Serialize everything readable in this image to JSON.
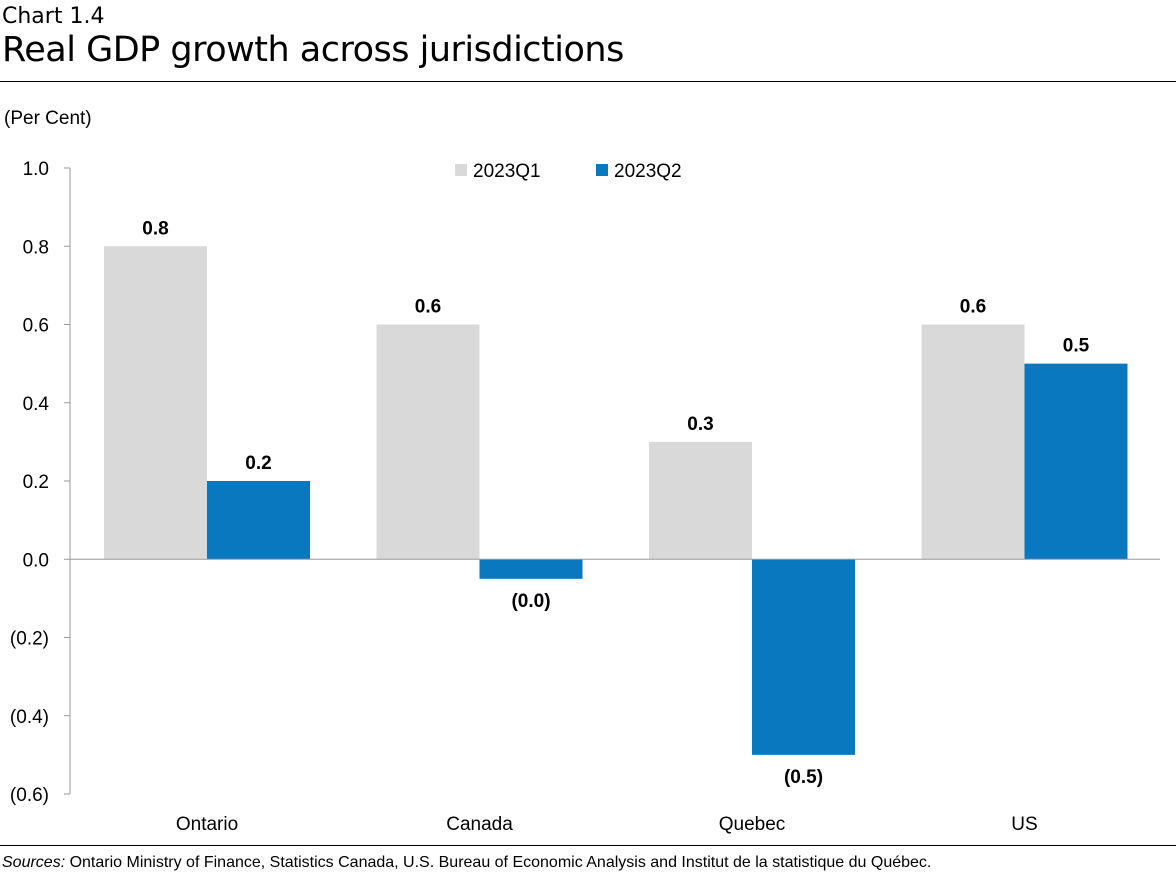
{
  "header": {
    "chart_label": "Chart 1.4",
    "title": "Real GDP growth across jurisdictions"
  },
  "units_label": "(Per Cent)",
  "chart_data": {
    "type": "bar",
    "title": "Real GDP growth across jurisdictions",
    "ylabel": "(Per Cent)",
    "xlabel": "",
    "ylim": [
      -0.6,
      1.0
    ],
    "yticks": [
      1.0,
      0.8,
      0.6,
      0.4,
      0.2,
      0.0,
      -0.2,
      -0.4,
      -0.6
    ],
    "ytick_labels": [
      "1.0",
      "0.8",
      "0.6",
      "0.4",
      "0.2",
      "0.0",
      "(0.2)",
      "(0.4)",
      "(0.6)"
    ],
    "categories": [
      "Ontario",
      "Canada",
      "Quebec",
      "US"
    ],
    "series": [
      {
        "name": "2023Q1",
        "color": "#d9d9d9",
        "values": [
          0.8,
          0.6,
          0.3,
          0.6
        ],
        "data_labels": [
          "0.8",
          "0.6",
          "0.3",
          "0.6"
        ]
      },
      {
        "name": "2023Q2",
        "color": "#0a78bf",
        "values": [
          0.2,
          -0.05,
          -0.5,
          0.5
        ],
        "data_labels": [
          "0.2",
          "(0.0)",
          "(0.5)",
          "0.5"
        ]
      }
    ],
    "legend": "top-center",
    "grid": false
  },
  "footer": {
    "sources_prefix": "Sources:",
    "sources_text": " Ontario Ministry of Finance, Statistics Canada, U.S. Bureau of Economic Analysis and Institut de la statistique du Québec."
  }
}
